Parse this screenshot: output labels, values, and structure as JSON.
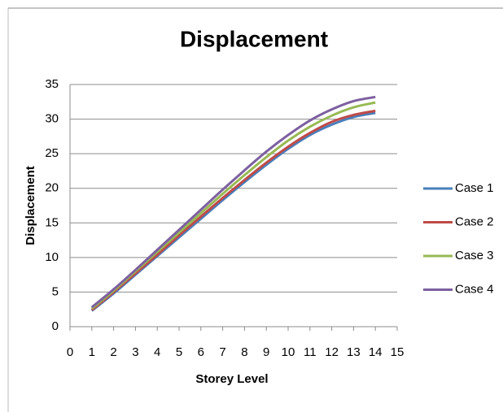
{
  "chart_data": {
    "type": "line",
    "title": "Displacement",
    "x_label": "Storey Level",
    "y_label": "Displacement",
    "x": [
      1,
      2,
      3,
      4,
      5,
      6,
      7,
      8,
      9,
      10,
      11,
      12,
      13,
      14
    ],
    "series": [
      {
        "name": "Case 1",
        "color": "#4a7ebb",
        "values": [
          2.3,
          4.8,
          7.5,
          10.2,
          12.9,
          15.6,
          18.3,
          20.9,
          23.4,
          25.7,
          27.7,
          29.2,
          30.3,
          30.9
        ]
      },
      {
        "name": "Case 2",
        "color": "#be4b48",
        "values": [
          2.4,
          5.0,
          7.7,
          10.4,
          13.2,
          15.9,
          18.6,
          21.2,
          23.7,
          26.0,
          28.0,
          29.6,
          30.6,
          31.2
        ]
      },
      {
        "name": "Case 3",
        "color": "#98b954",
        "values": [
          2.6,
          5.2,
          8.0,
          10.8,
          13.6,
          16.4,
          19.2,
          21.9,
          24.5,
          26.9,
          28.9,
          30.5,
          31.7,
          32.4
        ]
      },
      {
        "name": "Case 4",
        "color": "#7d60a0",
        "values": [
          2.8,
          5.4,
          8.2,
          11.1,
          14.0,
          16.9,
          19.8,
          22.6,
          25.3,
          27.7,
          29.8,
          31.4,
          32.6,
          33.2
        ]
      }
    ],
    "xlim": [
      0,
      15
    ],
    "xticks": [
      0,
      1,
      2,
      3,
      4,
      5,
      6,
      7,
      8,
      9,
      10,
      11,
      12,
      13,
      14,
      15
    ],
    "ylim": [
      0,
      35
    ],
    "yticks": [
      0,
      5,
      10,
      15,
      20,
      25,
      30,
      35
    ],
    "grid": true,
    "legend": "right"
  }
}
